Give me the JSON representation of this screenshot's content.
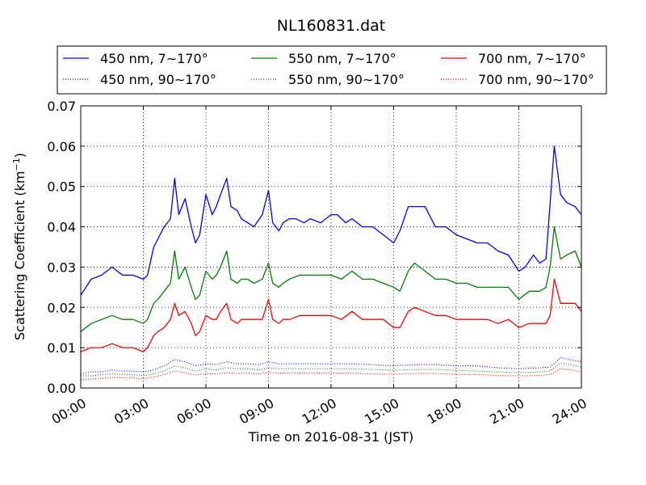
{
  "chart_data": {
    "type": "line",
    "title": "NL160831.dat",
    "xlabel": "Time on 2016-08-31 (JST)",
    "ylabel": "Scattering Coefficient (km",
    "ylabel_sup": "−1",
    "ylabel_close": ")",
    "xlim": [
      0,
      24
    ],
    "ylim": [
      0,
      0.07
    ],
    "x_ticks": [
      "00:00",
      "03:00",
      "06:00",
      "09:00",
      "12:00",
      "15:00",
      "18:00",
      "21:00",
      "24:00"
    ],
    "y_ticks": [
      "0.00",
      "0.01",
      "0.02",
      "0.03",
      "0.04",
      "0.05",
      "0.06",
      "0.07"
    ],
    "grid": true,
    "legend_position": "top-above",
    "x_unit": "hours",
    "series": [
      {
        "name": "450 nm, 7∼170°",
        "color": "#0000ff",
        "style": "solid",
        "x": [
          0,
          0.5,
          1,
          1.5,
          2,
          2.5,
          3,
          3.2,
          3.5,
          3.7,
          4,
          4.3,
          4.5,
          4.7,
          5,
          5.3,
          5.5,
          5.7,
          6,
          6.3,
          6.5,
          6.7,
          7,
          7.2,
          7.5,
          7.7,
          8,
          8.3,
          8.7,
          9,
          9.2,
          9.5,
          9.7,
          10,
          10.3,
          10.7,
          11,
          11.5,
          12,
          12.3,
          12.7,
          13,
          13.5,
          14,
          14.5,
          15,
          15.3,
          15.7,
          16,
          16.5,
          17,
          17.5,
          18,
          18.5,
          19,
          19.5,
          20,
          20.5,
          21,
          21.3,
          21.7,
          22,
          22.3,
          22.5,
          22.7,
          23,
          23.3,
          23.7,
          24
        ],
        "y": [
          0.023,
          0.027,
          0.028,
          0.03,
          0.028,
          0.028,
          0.027,
          0.028,
          0.035,
          0.037,
          0.04,
          0.042,
          0.052,
          0.043,
          0.047,
          0.04,
          0.036,
          0.038,
          0.048,
          0.043,
          0.045,
          0.048,
          0.052,
          0.045,
          0.044,
          0.042,
          0.041,
          0.04,
          0.043,
          0.049,
          0.041,
          0.039,
          0.041,
          0.042,
          0.042,
          0.041,
          0.042,
          0.041,
          0.043,
          0.043,
          0.041,
          0.042,
          0.04,
          0.04,
          0.038,
          0.036,
          0.039,
          0.045,
          0.045,
          0.045,
          0.04,
          0.04,
          0.038,
          0.037,
          0.036,
          0.036,
          0.034,
          0.033,
          0.029,
          0.03,
          0.033,
          0.031,
          0.032,
          0.046,
          0.06,
          0.048,
          0.046,
          0.045,
          0.043
        ]
      },
      {
        "name": "450 nm, 90∼170°",
        "color": "#0000ff",
        "style": "dotted",
        "x": [
          0,
          0.5,
          1,
          1.5,
          2,
          2.5,
          3,
          3.5,
          4,
          4.5,
          5,
          5.5,
          6,
          6.5,
          7,
          7.5,
          8,
          8.5,
          9,
          9.5,
          10,
          11,
          12,
          13,
          14,
          15,
          16,
          17,
          18,
          19,
          20,
          21,
          22,
          22.5,
          23,
          23.5,
          24
        ],
        "y": [
          0.0035,
          0.004,
          0.004,
          0.0045,
          0.0042,
          0.0042,
          0.004,
          0.0045,
          0.0055,
          0.007,
          0.0065,
          0.0055,
          0.006,
          0.0058,
          0.0065,
          0.006,
          0.006,
          0.0058,
          0.0065,
          0.006,
          0.006,
          0.006,
          0.006,
          0.006,
          0.0058,
          0.0055,
          0.0058,
          0.0058,
          0.0055,
          0.0055,
          0.005,
          0.0048,
          0.005,
          0.0052,
          0.0075,
          0.007,
          0.0065
        ]
      },
      {
        "name": "550 nm, 7∼170°",
        "color": "#008000",
        "style": "solid",
        "x": [
          0,
          0.5,
          1,
          1.5,
          2,
          2.5,
          3,
          3.2,
          3.5,
          3.7,
          4,
          4.3,
          4.5,
          4.7,
          5,
          5.3,
          5.5,
          5.7,
          6,
          6.3,
          6.5,
          6.7,
          7,
          7.2,
          7.5,
          7.7,
          8,
          8.3,
          8.7,
          9,
          9.2,
          9.5,
          9.7,
          10,
          10.5,
          11,
          11.5,
          12,
          12.5,
          13,
          13.5,
          14,
          14.5,
          15,
          15.3,
          15.7,
          16,
          16.5,
          17,
          17.5,
          18,
          18.5,
          19,
          19.5,
          20,
          20.5,
          21,
          21.5,
          22,
          22.3,
          22.5,
          22.7,
          23,
          23.3,
          23.7,
          24
        ],
        "y": [
          0.014,
          0.016,
          0.017,
          0.018,
          0.017,
          0.017,
          0.016,
          0.017,
          0.021,
          0.022,
          0.024,
          0.026,
          0.034,
          0.027,
          0.03,
          0.025,
          0.022,
          0.023,
          0.029,
          0.027,
          0.028,
          0.03,
          0.034,
          0.027,
          0.026,
          0.027,
          0.027,
          0.026,
          0.027,
          0.031,
          0.026,
          0.025,
          0.026,
          0.027,
          0.028,
          0.028,
          0.028,
          0.028,
          0.027,
          0.029,
          0.027,
          0.027,
          0.026,
          0.025,
          0.024,
          0.029,
          0.031,
          0.029,
          0.027,
          0.027,
          0.026,
          0.026,
          0.025,
          0.025,
          0.025,
          0.025,
          0.022,
          0.024,
          0.024,
          0.025,
          0.03,
          0.04,
          0.032,
          0.033,
          0.034,
          0.03
        ]
      },
      {
        "name": "550 nm, 90∼170°",
        "color": "#008000",
        "style": "dotted",
        "x": [
          0,
          0.5,
          1,
          1.5,
          2,
          2.5,
          3,
          3.5,
          4,
          4.5,
          5,
          5.5,
          6,
          6.5,
          7,
          7.5,
          8,
          8.5,
          9,
          9.5,
          10,
          11,
          12,
          13,
          14,
          15,
          16,
          17,
          18,
          19,
          20,
          21,
          22,
          22.5,
          23,
          23.5,
          24
        ],
        "y": [
          0.003,
          0.003,
          0.0033,
          0.0035,
          0.0033,
          0.0033,
          0.003,
          0.0035,
          0.0042,
          0.0055,
          0.005,
          0.0042,
          0.0048,
          0.0045,
          0.005,
          0.0048,
          0.0048,
          0.0045,
          0.005,
          0.0048,
          0.0048,
          0.0048,
          0.0048,
          0.0048,
          0.0046,
          0.0044,
          0.0046,
          0.0046,
          0.0044,
          0.0042,
          0.004,
          0.0038,
          0.004,
          0.0042,
          0.0062,
          0.0058,
          0.0052
        ]
      },
      {
        "name": "700 nm, 7∼170°",
        "color": "#ff0000",
        "style": "solid",
        "x": [
          0,
          0.5,
          1,
          1.5,
          2,
          2.5,
          3,
          3.2,
          3.5,
          3.7,
          4,
          4.3,
          4.5,
          4.7,
          5,
          5.3,
          5.5,
          5.7,
          6,
          6.3,
          6.5,
          6.7,
          7,
          7.2,
          7.5,
          7.7,
          8,
          8.3,
          8.7,
          9,
          9.2,
          9.5,
          9.7,
          10,
          10.5,
          11,
          11.5,
          12,
          12.5,
          13,
          13.5,
          14,
          14.5,
          15,
          15.3,
          15.7,
          16,
          16.5,
          17,
          17.5,
          18,
          18.5,
          19,
          19.5,
          20,
          20.5,
          21,
          21.5,
          22,
          22.3,
          22.5,
          22.7,
          23,
          23.3,
          23.7,
          24
        ],
        "y": [
          0.009,
          0.01,
          0.01,
          0.011,
          0.01,
          0.01,
          0.009,
          0.01,
          0.013,
          0.014,
          0.015,
          0.017,
          0.021,
          0.018,
          0.019,
          0.016,
          0.013,
          0.014,
          0.018,
          0.017,
          0.017,
          0.019,
          0.021,
          0.017,
          0.016,
          0.017,
          0.017,
          0.017,
          0.017,
          0.022,
          0.017,
          0.016,
          0.017,
          0.017,
          0.018,
          0.018,
          0.018,
          0.018,
          0.017,
          0.019,
          0.017,
          0.017,
          0.017,
          0.015,
          0.015,
          0.019,
          0.02,
          0.019,
          0.018,
          0.018,
          0.017,
          0.017,
          0.017,
          0.017,
          0.016,
          0.017,
          0.015,
          0.016,
          0.016,
          0.016,
          0.018,
          0.027,
          0.021,
          0.021,
          0.021,
          0.019
        ]
      },
      {
        "name": "700 nm, 90∼170°",
        "color": "#ff0000",
        "style": "dotted",
        "x": [
          0,
          0.5,
          1,
          1.5,
          2,
          2.5,
          3,
          3.5,
          4,
          4.5,
          5,
          5.5,
          6,
          6.5,
          7,
          7.5,
          8,
          8.5,
          9,
          9.5,
          10,
          11,
          12,
          13,
          14,
          15,
          16,
          17,
          18,
          19,
          20,
          21,
          22,
          22.5,
          23,
          23.5,
          24
        ],
        "y": [
          0.002,
          0.0022,
          0.0024,
          0.0026,
          0.0025,
          0.0025,
          0.0023,
          0.0027,
          0.0033,
          0.0042,
          0.0038,
          0.0032,
          0.0036,
          0.0035,
          0.0038,
          0.0036,
          0.0037,
          0.0035,
          0.0038,
          0.0037,
          0.0037,
          0.0037,
          0.0037,
          0.0037,
          0.0035,
          0.0034,
          0.0036,
          0.0036,
          0.0034,
          0.0033,
          0.0031,
          0.003,
          0.0031,
          0.0033,
          0.0048,
          0.0045,
          0.004
        ]
      }
    ]
  }
}
